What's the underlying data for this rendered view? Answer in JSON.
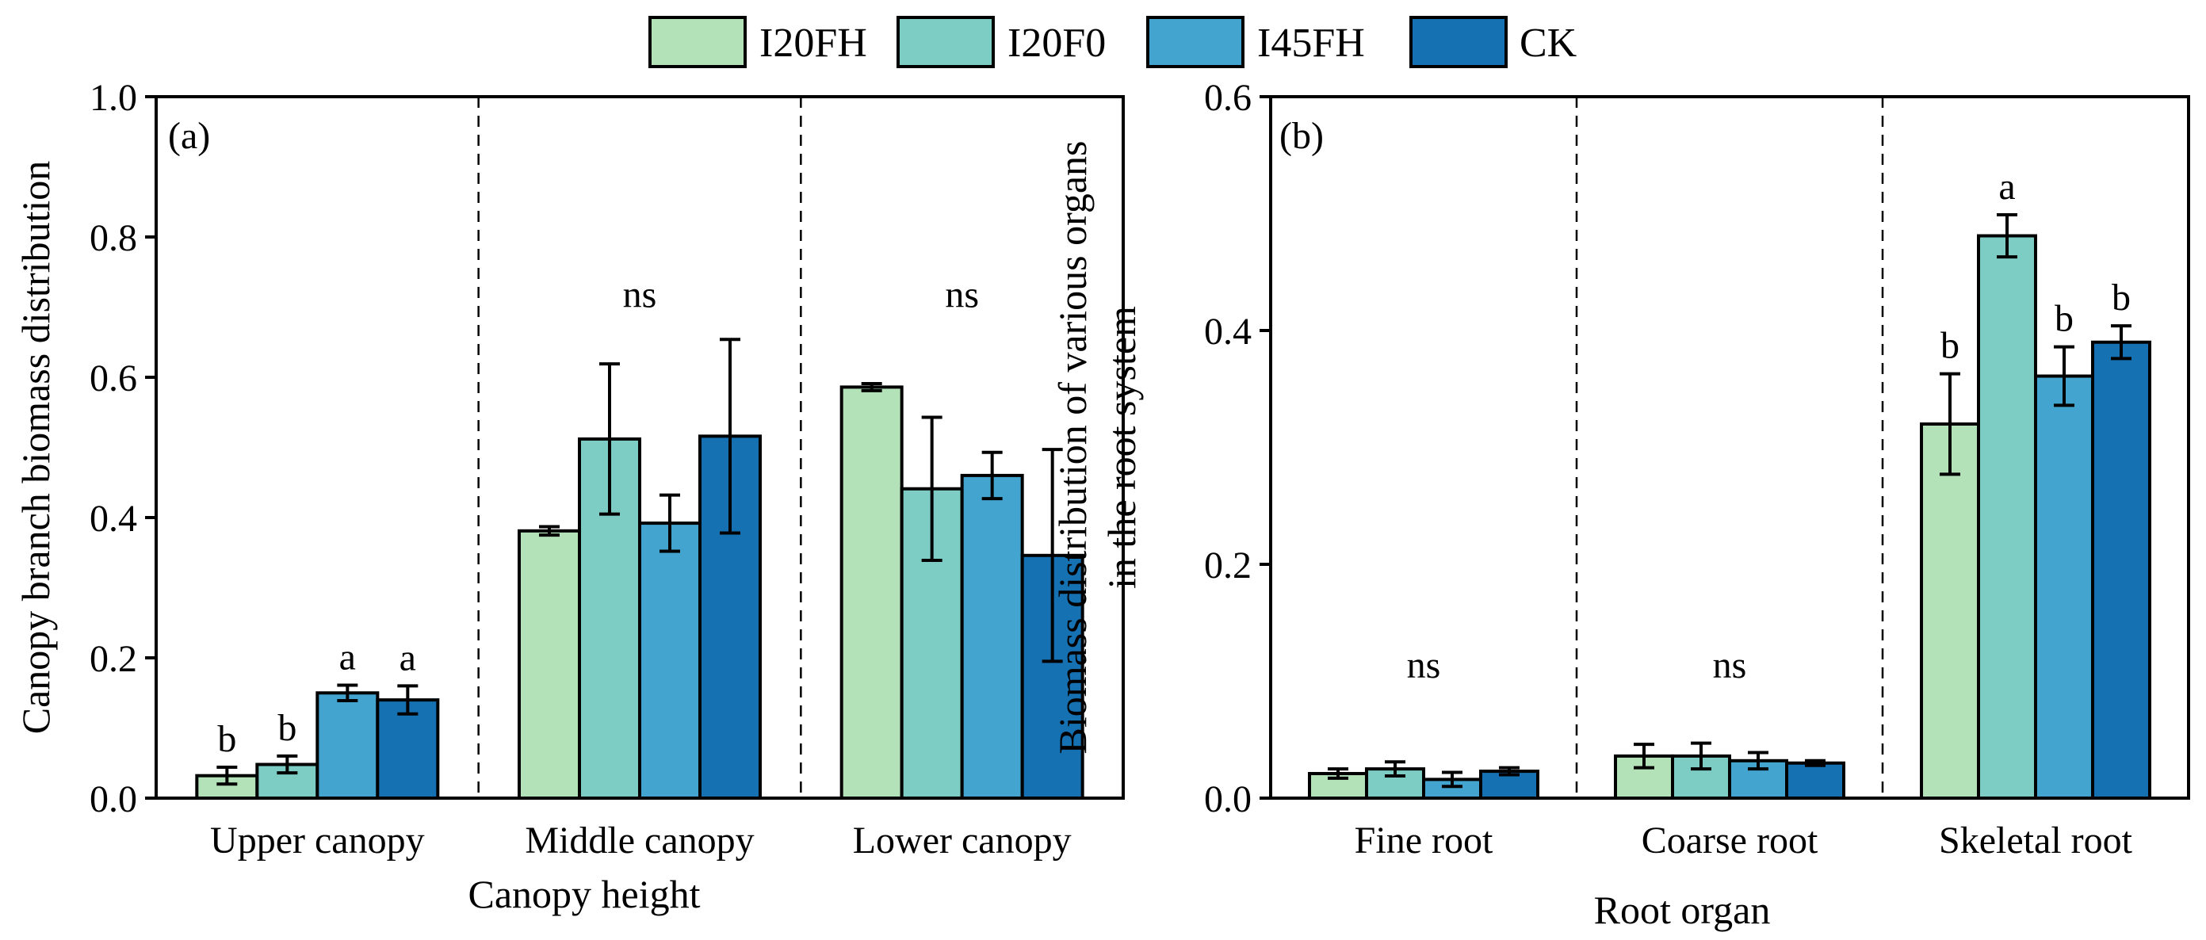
{
  "legend": [
    {
      "name": "I20FH",
      "color": "#b3e2b9"
    },
    {
      "name": "I20F0",
      "color": "#7ecdc4"
    },
    {
      "name": "I45FH",
      "color": "#43a5cf"
    },
    {
      "name": "CK",
      "color": "#1571b2"
    }
  ],
  "chart_data": [
    {
      "type": "bar",
      "panel_label": "(a)",
      "categories": [
        "Upper canopy",
        "Middle canopy",
        "Lower canopy"
      ],
      "xlabel": "Canopy height",
      "ylabel": "Canopy branch biomass distribution",
      "ylim": [
        0,
        1.0
      ],
      "yticks": [
        "0.0",
        "0.2",
        "0.4",
        "0.6",
        "0.8",
        "1.0"
      ],
      "ytick_values": [
        0,
        0.2,
        0.4,
        0.6,
        0.8,
        1.0
      ],
      "series": [
        {
          "name": "I20FH",
          "values": [
            0.032,
            0.381,
            0.586
          ],
          "errors": [
            0.012,
            0.006,
            0.005
          ]
        },
        {
          "name": "I20F0",
          "values": [
            0.048,
            0.512,
            0.441
          ],
          "errors": [
            0.012,
            0.107,
            0.102
          ]
        },
        {
          "name": "I45FH",
          "values": [
            0.15,
            0.392,
            0.46
          ],
          "errors": [
            0.011,
            0.04,
            0.033
          ]
        },
        {
          "name": "CK",
          "values": [
            0.14,
            0.516,
            0.346
          ],
          "errors": [
            0.02,
            0.138,
            0.151
          ]
        }
      ],
      "annotations": [
        {
          "category": 0,
          "series": 0,
          "text": "b"
        },
        {
          "category": 0,
          "series": 1,
          "text": "b"
        },
        {
          "category": 0,
          "series": 2,
          "text": "a"
        },
        {
          "category": 0,
          "series": 3,
          "text": "a"
        },
        {
          "category": 1,
          "text": "ns",
          "y": 0.7
        },
        {
          "category": 2,
          "text": "ns",
          "y": 0.7
        }
      ]
    },
    {
      "type": "bar",
      "panel_label": "(b)",
      "categories": [
        "Fine root",
        "Coarse root",
        "Skeletal root"
      ],
      "xlabel": "Root organ",
      "ylabel_lines": [
        "Biomass distribution of various organs",
        "in the root system"
      ],
      "ylim": [
        0,
        0.6
      ],
      "yticks": [
        "0.0",
        "0.2",
        "0.4",
        "0.6"
      ],
      "ytick_values": [
        0,
        0.2,
        0.4,
        0.6
      ],
      "series": [
        {
          "name": "I20FH",
          "values": [
            0.021,
            0.036,
            0.32
          ],
          "errors": [
            0.004,
            0.01,
            0.043
          ]
        },
        {
          "name": "I20F0",
          "values": [
            0.025,
            0.036,
            0.481
          ],
          "errors": [
            0.006,
            0.011,
            0.018
          ]
        },
        {
          "name": "I45FH",
          "values": [
            0.016,
            0.032,
            0.361
          ],
          "errors": [
            0.006,
            0.007,
            0.025
          ]
        },
        {
          "name": "CK",
          "values": [
            0.023,
            0.03,
            0.39
          ],
          "errors": [
            0.003,
            0.002,
            0.014
          ]
        }
      ],
      "annotations": [
        {
          "category": 0,
          "text": "ns",
          "y": 0.103
        },
        {
          "category": 1,
          "text": "ns",
          "y": 0.103
        },
        {
          "category": 2,
          "series": 0,
          "text": "b"
        },
        {
          "category": 2,
          "series": 1,
          "text": "a"
        },
        {
          "category": 2,
          "series": 2,
          "text": "b"
        },
        {
          "category": 2,
          "series": 3,
          "text": "b"
        }
      ]
    }
  ]
}
